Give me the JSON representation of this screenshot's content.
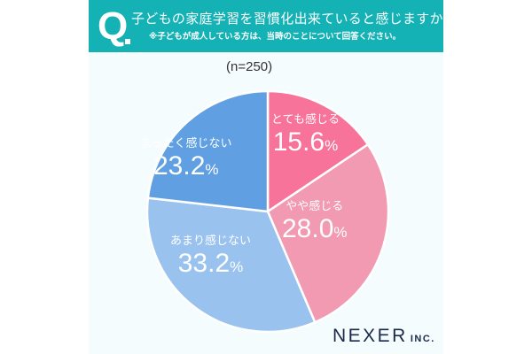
{
  "header": {
    "q_mark": "Q",
    "title": "子どもの家庭学習を習慣化出来ていると感じますか？",
    "subtitle": "※子どもが成人している方は、当時のことについて回答ください。"
  },
  "sample": "(n=250)",
  "segments": [
    {
      "name": "とても感じる",
      "value": "15.6",
      "unit": "%",
      "color": "#f7739a"
    },
    {
      "name": "やや感じる",
      "value": "28.0",
      "unit": "%",
      "color": "#f29ab2"
    },
    {
      "name": "あまり感じない",
      "value": "33.2",
      "unit": "%",
      "color": "#99c2ef"
    },
    {
      "name": "まったく感じない",
      "value": "23.2",
      "unit": "%",
      "color": "#5f9fe2"
    }
  ],
  "logo": {
    "main": "NEXER",
    "suffix": "INC."
  },
  "colors": {
    "header": "#14b1b5",
    "card_bg": "#f4fcfd",
    "logo": "#1b2a4a"
  },
  "chart_data": {
    "type": "pie",
    "title": "子どもの家庭学習を習慣化出来ていると感じますか？",
    "subtitle": "※子どもが成人している方は、当時のことについて回答ください。",
    "sample_size": "n=250",
    "categories": [
      "とても感じる",
      "やや感じる",
      "あまり感じない",
      "まったく感じない"
    ],
    "values": [
      15.6,
      28.0,
      33.2,
      23.2
    ],
    "unit": "%",
    "start_angle": "12 o'clock, clockwise",
    "legend": "inline labels"
  }
}
